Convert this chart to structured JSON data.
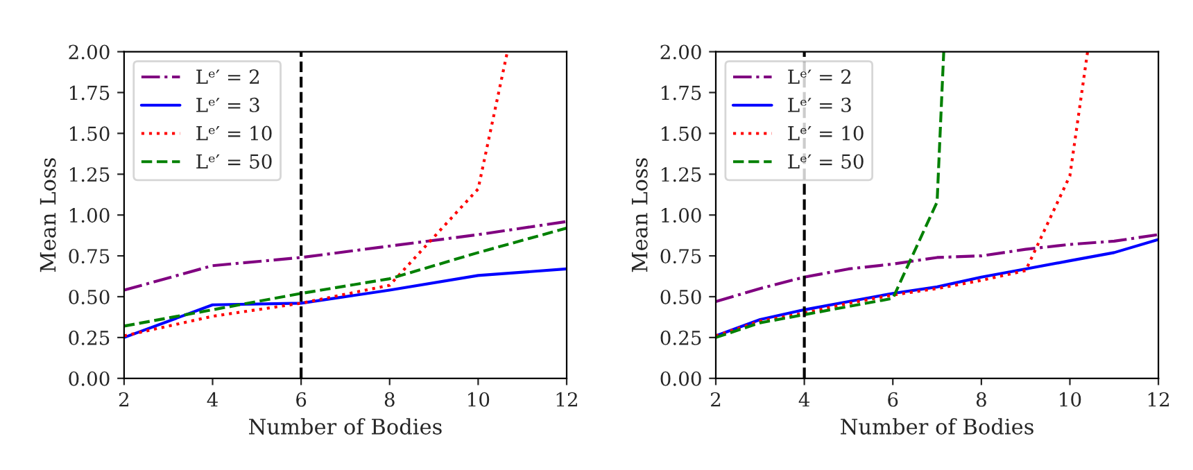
{
  "chart_data": [
    {
      "type": "line",
      "xlabel": "Number of Bodies",
      "ylabel": "Mean Loss",
      "xlim": [
        2,
        12
      ],
      "xticks": [
        2,
        4,
        6,
        8,
        10,
        12
      ],
      "ylim": [
        0,
        2
      ],
      "yticks": [
        {
          "value": 0,
          "label": "0.00"
        },
        {
          "value": 0.25,
          "label": "0.25"
        },
        {
          "value": 0.5,
          "label": "0.50"
        },
        {
          "value": 0.75,
          "label": "0.75"
        },
        {
          "value": 1,
          "label": "1.00"
        },
        {
          "value": 1.25,
          "label": "1.25"
        },
        {
          "value": 1.5,
          "label": "1.50"
        },
        {
          "value": 1.75,
          "label": "1.75"
        },
        {
          "value": 2,
          "label": "2.00"
        }
      ],
      "legend": "top left",
      "grid": false,
      "x": [
        2,
        4,
        6,
        8,
        10,
        12
      ],
      "series": [
        {
          "name": "Lᵉ′ = 2",
          "color": "#800080",
          "line_style": "dashdot",
          "values": [
            0.54,
            0.69,
            0.74,
            0.81,
            0.88,
            0.96
          ]
        },
        {
          "name": "Lᵉ′ = 3",
          "color": "#0000ff",
          "line_style": "solid",
          "values": [
            0.25,
            0.45,
            0.46,
            0.54,
            0.63,
            0.67
          ]
        },
        {
          "name": "Lᵉ′ = 10",
          "color": "#ff0000",
          "line_style": "dotted",
          "x": [
            2,
            4,
            6,
            8,
            10,
            10.66
          ],
          "values": [
            0.26,
            0.38,
            0.46,
            0.57,
            1.16,
            2.0
          ]
        },
        {
          "name": "Lᵉ′ = 50",
          "color": "#008000",
          "line_style": "dashed",
          "values": [
            0.32,
            0.42,
            0.52,
            0.61,
            0.77,
            0.92
          ]
        }
      ],
      "ref_lines": [
        {
          "axis": "x",
          "value": 6,
          "color": "#000000",
          "line_style": "dashed"
        }
      ]
    },
    {
      "type": "line",
      "xlabel": "Number of Bodies",
      "ylabel": "Mean Loss",
      "xlim": [
        2,
        12
      ],
      "xticks": [
        2,
        4,
        6,
        8,
        10,
        12
      ],
      "ylim": [
        0,
        2
      ],
      "yticks": [
        {
          "value": 0,
          "label": "0.00"
        },
        {
          "value": 0.25,
          "label": "0.25"
        },
        {
          "value": 0.5,
          "label": "0.50"
        },
        {
          "value": 0.75,
          "label": "0.75"
        },
        {
          "value": 1,
          "label": "1.00"
        },
        {
          "value": 1.25,
          "label": "1.25"
        },
        {
          "value": 1.5,
          "label": "1.50"
        },
        {
          "value": 1.75,
          "label": "1.75"
        },
        {
          "value": 2,
          "label": "2.00"
        }
      ],
      "legend": "top left",
      "grid": false,
      "x": [
        2,
        3,
        4,
        5,
        6,
        7,
        8,
        9,
        10,
        11,
        12
      ],
      "series": [
        {
          "name": "Lᵉ′ = 2",
          "color": "#800080",
          "line_style": "dashdot",
          "values": [
            0.47,
            0.55,
            0.62,
            0.67,
            0.7,
            0.74,
            0.75,
            0.79,
            0.82,
            0.84,
            0.88
          ]
        },
        {
          "name": "Lᵉ′ = 3",
          "color": "#0000ff",
          "line_style": "solid",
          "values": [
            0.26,
            0.36,
            0.42,
            0.47,
            0.52,
            0.56,
            0.62,
            0.67,
            0.72,
            0.77,
            0.85
          ]
        },
        {
          "name": "Lᵉ′ = 10",
          "color": "#ff0000",
          "line_style": "dotted",
          "x": [
            2,
            3,
            4,
            5,
            6,
            7,
            8,
            9,
            10,
            10.4
          ],
          "values": [
            0.26,
            0.35,
            0.4,
            0.46,
            0.51,
            0.55,
            0.6,
            0.66,
            1.24,
            2.0
          ]
        },
        {
          "name": "Lᵉ′ = 50",
          "color": "#008000",
          "line_style": "dashed",
          "x": [
            2,
            3,
            4,
            5,
            6,
            7,
            7.15
          ],
          "values": [
            0.25,
            0.34,
            0.39,
            0.44,
            0.49,
            1.08,
            2.0
          ]
        }
      ],
      "ref_lines": [
        {
          "axis": "x",
          "value": 4,
          "color": "#000000",
          "line_style": "dashed"
        }
      ]
    }
  ]
}
